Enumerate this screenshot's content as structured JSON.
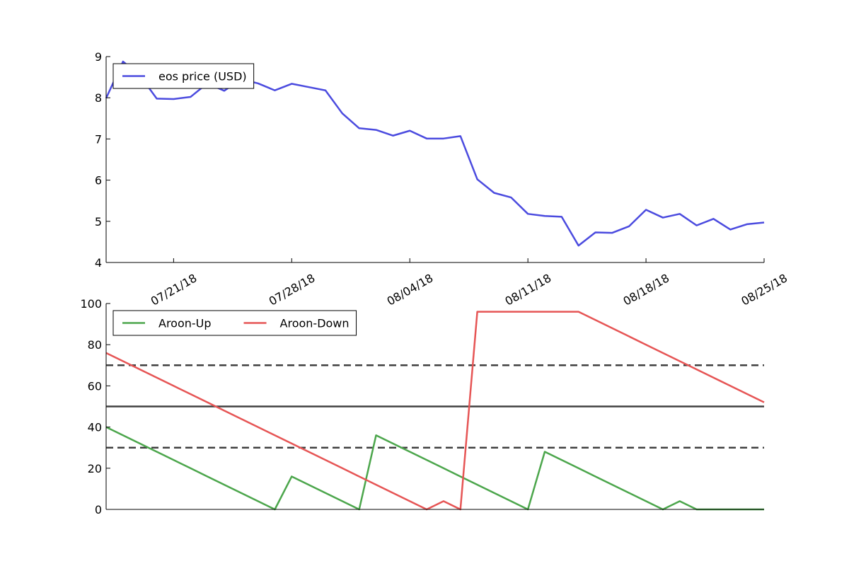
{
  "chart_data": [
    {
      "type": "line",
      "ylim": [
        4,
        9
      ],
      "yticks": [
        "4",
        "5",
        "6",
        "7",
        "8",
        "9"
      ],
      "x_dates": [
        "07/17/18",
        "07/18/18",
        "07/19/18",
        "07/20/18",
        "07/21/18",
        "07/22/18",
        "07/23/18",
        "07/24/18",
        "07/25/18",
        "07/26/18",
        "07/27/18",
        "07/28/18",
        "07/29/18",
        "07/30/18",
        "07/31/18",
        "08/01/18",
        "08/02/18",
        "08/03/18",
        "08/04/18",
        "08/05/18",
        "08/06/18",
        "08/07/18",
        "08/08/18",
        "08/09/18",
        "08/10/18",
        "08/11/18",
        "08/12/18",
        "08/13/18",
        "08/14/18",
        "08/15/18",
        "08/16/18",
        "08/17/18",
        "08/18/18",
        "08/19/18",
        "08/20/18",
        "08/21/18",
        "08/22/18",
        "08/23/18",
        "08/24/18",
        "08/25/18"
      ],
      "xticks": [
        "07/21/18",
        "07/28/18",
        "08/04/18",
        "08/11/18",
        "08/18/18",
        "08/25/18"
      ],
      "legend_loc": "upper left",
      "series": [
        {
          "name": "eos price (USD)",
          "color": "#4b4bdf",
          "values": [
            7.99,
            8.88,
            8.54,
            7.98,
            7.97,
            8.02,
            8.35,
            8.17,
            8.45,
            8.35,
            8.18,
            8.34,
            8.26,
            8.18,
            7.62,
            7.26,
            7.22,
            7.08,
            7.2,
            7.01,
            7.01,
            7.07,
            6.02,
            5.69,
            5.58,
            5.18,
            5.13,
            5.11,
            4.41,
            4.73,
            4.72,
            4.88,
            5.28,
            5.09,
            5.18,
            4.9,
            5.06,
            4.8,
            4.93,
            4.97
          ]
        }
      ]
    },
    {
      "type": "line",
      "ylim": [
        0,
        100
      ],
      "yticks": [
        "0",
        "20",
        "40",
        "60",
        "80",
        "100"
      ],
      "legend_loc": "upper left",
      "hlines": [
        {
          "y": 70,
          "style": "dashed",
          "color": "#404040"
        },
        {
          "y": 50,
          "style": "solid",
          "color": "#404040"
        },
        {
          "y": 30,
          "style": "dashed",
          "color": "#404040"
        }
      ],
      "series": [
        {
          "name": "Aroon-Up",
          "color": "#4ca64c",
          "values": [
            40,
            36,
            32,
            28,
            24,
            20,
            16,
            12,
            8,
            4,
            0,
            16,
            12,
            8,
            4,
            0,
            36,
            32,
            28,
            24,
            20,
            16,
            12,
            8,
            4,
            0,
            28,
            24,
            20,
            16,
            12,
            8,
            4,
            0,
            4,
            0,
            0,
            0,
            0,
            0
          ]
        },
        {
          "name": "Aroon-Down",
          "color": "#e65555",
          "values": [
            76,
            72,
            68,
            64,
            60,
            56,
            52,
            48,
            44,
            40,
            36,
            32,
            28,
            24,
            20,
            16,
            12,
            8,
            4,
            0,
            4,
            0,
            96,
            96,
            96,
            96,
            96,
            96,
            96,
            92,
            88,
            84,
            80,
            76,
            72,
            68,
            64,
            60,
            56,
            52
          ]
        }
      ]
    }
  ]
}
